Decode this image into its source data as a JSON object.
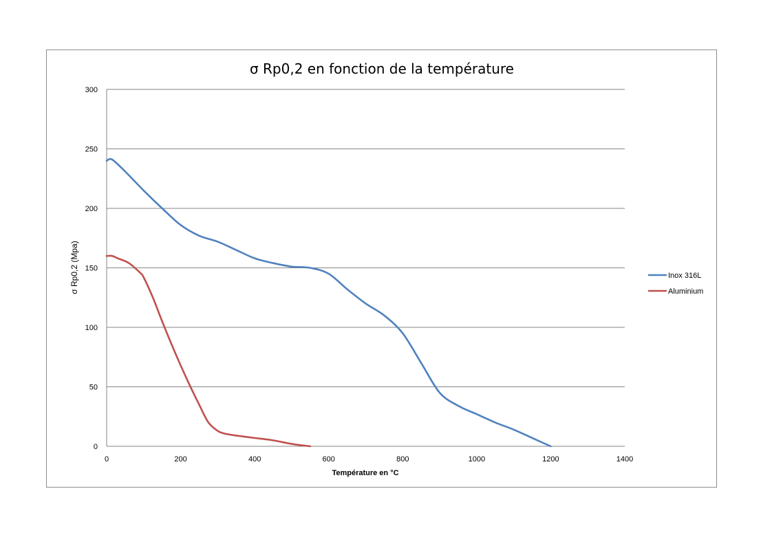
{
  "chart_data": {
    "type": "line",
    "title": "σ Rp0,2 en fonction de la température",
    "xlabel": "Température en °C",
    "ylabel": "σ Rp0,2 (Mpa)",
    "xlim": [
      0,
      1400
    ],
    "ylim": [
      0,
      300
    ],
    "xticks": [
      0,
      200,
      400,
      600,
      800,
      1000,
      1200,
      1400
    ],
    "yticks": [
      0,
      50,
      100,
      150,
      200,
      250,
      300
    ],
    "grid": "horizontal",
    "legend_position": "right",
    "series": [
      {
        "name": "Inox 316L",
        "color": "#4F81BD",
        "x": [
          0,
          15,
          50,
          100,
          150,
          200,
          250,
          300,
          350,
          400,
          450,
          500,
          550,
          600,
          650,
          700,
          750,
          800,
          850,
          900,
          950,
          1000,
          1050,
          1100,
          1150,
          1200
        ],
        "y": [
          240,
          241,
          231,
          215,
          200,
          186,
          177,
          172,
          165,
          158,
          154,
          151,
          150,
          145,
          132,
          120,
          110,
          95,
          70,
          45,
          34,
          27,
          20,
          14,
          7,
          0
        ]
      },
      {
        "name": "Aluminium",
        "color": "#C0504D",
        "x": [
          0,
          15,
          30,
          60,
          90,
          100,
          125,
          150,
          175,
          200,
          225,
          250,
          275,
          300,
          315,
          330,
          350,
          400,
          450,
          500,
          550
        ],
        "y": [
          160,
          160,
          158,
          154,
          146,
          142,
          125,
          105,
          86,
          68,
          51,
          35,
          20,
          13,
          11,
          10,
          9,
          7,
          5,
          2,
          0
        ]
      }
    ]
  }
}
